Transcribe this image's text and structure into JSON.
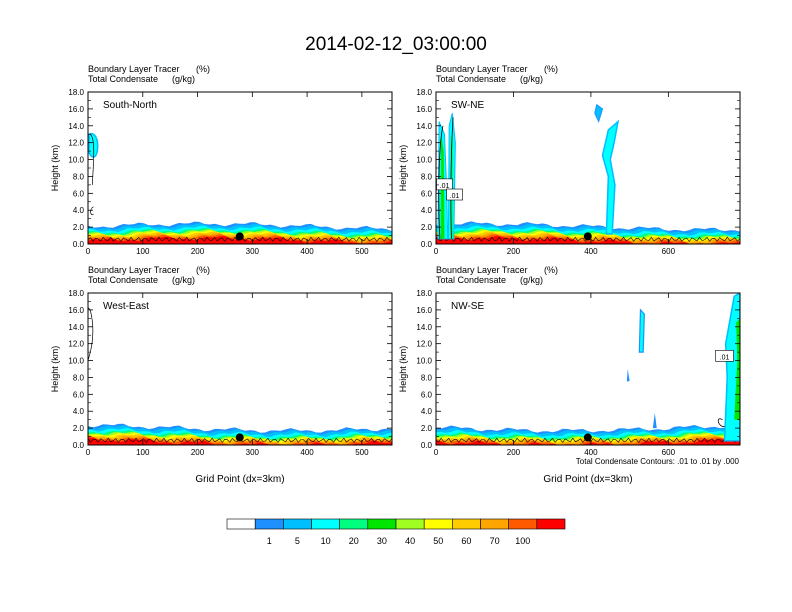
{
  "title": "2014-02-12_03:00:00",
  "colorbar": {
    "labels": [
      "1",
      "5",
      "10",
      "20",
      "30",
      "40",
      "50",
      "60",
      "70",
      "100"
    ],
    "colors": [
      "#ffffff",
      "#1e90ff",
      "#00bfff",
      "#00ffff",
      "#00ff7f",
      "#00e600",
      "#a0ff20",
      "#ffff00",
      "#ffcc00",
      "#ffa500",
      "#ff5a00",
      "#ff0000"
    ]
  },
  "footnote": "Total Condensate Contours: .01 to .01 by .000",
  "contour_label": ".01",
  "chart_data": [
    {
      "type": "heatmap",
      "panel": "South-North",
      "subtitle_left_1": "Boundary Layer Tracer",
      "subtitle_unit_1": "(%)",
      "subtitle_left_2": "Total Condensate",
      "subtitle_unit_2": "(g/kg)",
      "ylabel": "Height (km)",
      "xlabel": "",
      "xlim": [
        0,
        555
      ],
      "ylim": [
        0,
        18
      ],
      "xticks": [
        "0",
        "100",
        "200",
        "300",
        "400",
        "500"
      ],
      "yticks": [
        "0.0",
        "2.0",
        "4.0",
        "6.0",
        "8.0",
        "10.0",
        "12.0",
        "14.0",
        "16.0",
        "18.0"
      ],
      "marker_x": 277
    },
    {
      "type": "heatmap",
      "panel": "SW-NE",
      "subtitle_left_1": "Boundary Layer Tracer",
      "subtitle_unit_1": "(%)",
      "subtitle_left_2": "Total Condensate",
      "subtitle_unit_2": "(g/kg)",
      "ylabel": "Height (km)",
      "xlabel": "",
      "xlim": [
        0,
        785
      ],
      "ylim": [
        0,
        18
      ],
      "xticks": [
        "0",
        "200",
        "400",
        "600"
      ],
      "yticks": [
        "0.0",
        "2.0",
        "4.0",
        "6.0",
        "8.0",
        "10.0",
        "12.0",
        "14.0",
        "16.0",
        "18.0"
      ],
      "marker_x": 392
    },
    {
      "type": "heatmap",
      "panel": "West-East",
      "subtitle_left_1": "Boundary Layer Tracer",
      "subtitle_unit_1": "(%)",
      "subtitle_left_2": "Total Condensate",
      "subtitle_unit_2": "(g/kg)",
      "ylabel": "Height (km)",
      "xlabel": "Grid Point (dx=3km)",
      "xlim": [
        0,
        555
      ],
      "ylim": [
        0,
        18
      ],
      "xticks": [
        "0",
        "100",
        "200",
        "300",
        "400",
        "500"
      ],
      "yticks": [
        "0.0",
        "2.0",
        "4.0",
        "6.0",
        "8.0",
        "10.0",
        "12.0",
        "14.0",
        "16.0",
        "18.0"
      ],
      "marker_x": 277
    },
    {
      "type": "heatmap",
      "panel": "NW-SE",
      "subtitle_left_1": "Boundary Layer Tracer",
      "subtitle_unit_1": "(%)",
      "subtitle_left_2": "Total Condensate",
      "subtitle_unit_2": "(g/kg)",
      "ylabel": "Height (km)",
      "xlabel": "Grid Point (dx=3km)",
      "xlim": [
        0,
        785
      ],
      "ylim": [
        0,
        18
      ],
      "xticks": [
        "0",
        "200",
        "400",
        "600"
      ],
      "yticks": [
        "0.0",
        "2.0",
        "4.0",
        "6.0",
        "8.0",
        "10.0",
        "12.0",
        "14.0",
        "16.0",
        "18.0"
      ],
      "marker_x": 392
    }
  ]
}
